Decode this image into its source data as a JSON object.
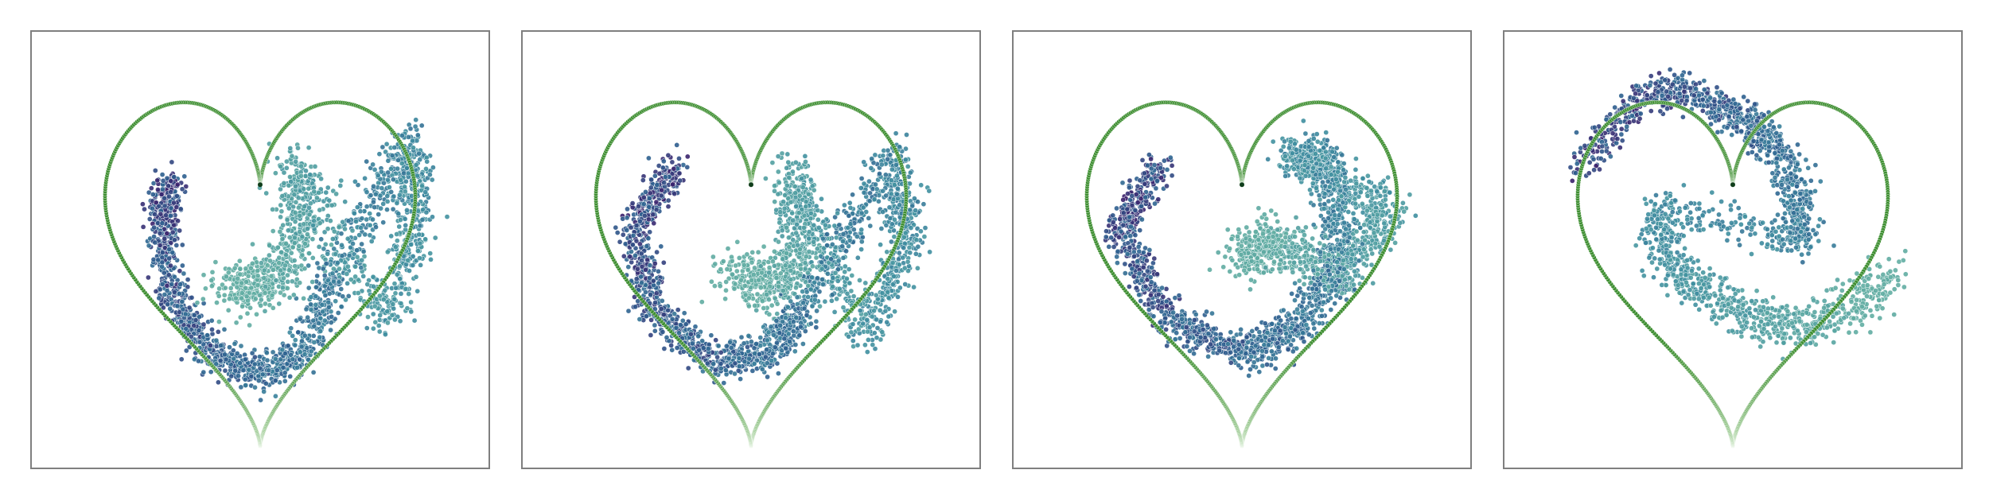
{
  "chart_data": [
    {
      "type": "scatter",
      "title": "",
      "xlabel": "",
      "ylabel": "",
      "axes_visible": false,
      "grid": false,
      "xlim": [
        -1.25,
        1.25
      ],
      "ylim": [
        -1.15,
        1.25
      ],
      "series": [
        {
          "role": "boundary",
          "shape": "heart",
          "count": 600,
          "colors": {
            "start": "#c8e6c0",
            "mid": "#3f8f32",
            "end": "#2e7d22"
          }
        },
        {
          "role": "samples",
          "shape": "spiral",
          "arms": 2,
          "count": 2600,
          "density_colormap": [
            "#3b1f6b",
            "#2d5f8f",
            "#3f8fa0",
            "#68b3a3"
          ],
          "points": [
            [
              -0.55,
              0.45
            ],
            [
              -0.6,
              0.2
            ],
            [
              -0.55,
              -0.2
            ],
            [
              -0.3,
              -0.55
            ],
            [
              0.0,
              -0.68
            ],
            [
              0.25,
              -0.55
            ],
            [
              0.45,
              -0.1
            ],
            [
              0.9,
              0.7
            ],
            [
              0.95,
              0.2
            ],
            [
              0.75,
              -0.35
            ],
            [
              0.2,
              0.55
            ],
            [
              0.25,
              0.1
            ],
            [
              0.05,
              -0.15
            ],
            [
              -0.2,
              -0.2
            ]
          ]
        }
      ]
    },
    {
      "type": "scatter",
      "title": "",
      "xlabel": "",
      "ylabel": "",
      "axes_visible": false,
      "grid": false,
      "xlim": [
        -1.25,
        1.25
      ],
      "ylim": [
        -1.15,
        1.25
      ],
      "series": [
        {
          "role": "boundary",
          "shape": "heart",
          "count": 600,
          "colors": {
            "start": "#c8e6c0",
            "mid": "#3f8f32",
            "end": "#2e7d22"
          }
        },
        {
          "role": "samples",
          "shape": "spiral",
          "arms": 2,
          "count": 2600,
          "density_colormap": [
            "#3b1f6b",
            "#2d5f8f",
            "#3f8fa0",
            "#68b3a3"
          ],
          "points": [
            [
              -0.45,
              0.55
            ],
            [
              -0.7,
              0.2
            ],
            [
              -0.6,
              -0.3
            ],
            [
              -0.2,
              -0.6
            ],
            [
              0.1,
              -0.55
            ],
            [
              0.3,
              -0.3
            ],
            [
              0.85,
              0.6
            ],
            [
              0.95,
              0.1
            ],
            [
              0.7,
              -0.45
            ],
            [
              0.25,
              0.5
            ],
            [
              0.3,
              0.05
            ],
            [
              0.15,
              -0.2
            ],
            [
              -0.1,
              -0.05
            ]
          ]
        }
      ]
    },
    {
      "type": "scatter",
      "title": "",
      "xlabel": "",
      "ylabel": "",
      "axes_visible": false,
      "grid": false,
      "xlim": [
        -1.25,
        1.25
      ],
      "ylim": [
        -1.15,
        1.25
      ],
      "series": [
        {
          "role": "boundary",
          "shape": "heart",
          "count": 600,
          "colors": {
            "start": "#c8e6c0",
            "mid": "#3f8f32",
            "end": "#2e7d22"
          }
        },
        {
          "role": "samples",
          "shape": "spiral",
          "arms": 2,
          "count": 2600,
          "density_colormap": [
            "#3b1f6b",
            "#2d5f8f",
            "#3f8fa0",
            "#68b3a3"
          ],
          "points": [
            [
              -0.5,
              0.55
            ],
            [
              -0.75,
              0.15
            ],
            [
              -0.45,
              -0.35
            ],
            [
              0.0,
              -0.55
            ],
            [
              0.35,
              -0.4
            ],
            [
              0.6,
              0.0
            ],
            [
              0.55,
              0.55
            ],
            [
              0.3,
              0.6
            ],
            [
              0.9,
              0.3
            ],
            [
              0.6,
              -0.1
            ],
            [
              0.2,
              0.1
            ],
            [
              0.0,
              0.0
            ]
          ]
        }
      ]
    },
    {
      "type": "scatter",
      "title": "",
      "xlabel": "",
      "ylabel": "",
      "axes_visible": false,
      "grid": false,
      "xlim": [
        -1.25,
        1.25
      ],
      "ylim": [
        -1.15,
        1.25
      ],
      "series": [
        {
          "role": "boundary",
          "shape": "heart",
          "count": 600,
          "colors": {
            "start": "#c8e6c0",
            "mid": "#3f8f32",
            "end": "#2e7d22"
          }
        },
        {
          "role": "samples",
          "shape": "arcs",
          "count": 1900,
          "density_colormap": [
            "#3b1f6b",
            "#2d5f8f",
            "#3f8fa0",
            "#68b3a3"
          ],
          "points": [
            [
              -0.95,
              0.5
            ],
            [
              -0.6,
              0.9
            ],
            [
              -0.3,
              1.0
            ],
            [
              -0.05,
              0.85
            ],
            [
              0.15,
              0.75
            ],
            [
              0.3,
              0.6
            ],
            [
              0.4,
              0.3
            ],
            [
              0.4,
              0.1
            ],
            [
              -0.45,
              0.3
            ],
            [
              -0.4,
              0.0
            ],
            [
              -0.2,
              -0.2
            ],
            [
              0.1,
              -0.35
            ],
            [
              0.4,
              -0.4
            ],
            [
              0.7,
              -0.3
            ],
            [
              0.95,
              -0.1
            ]
          ]
        }
      ]
    }
  ]
}
